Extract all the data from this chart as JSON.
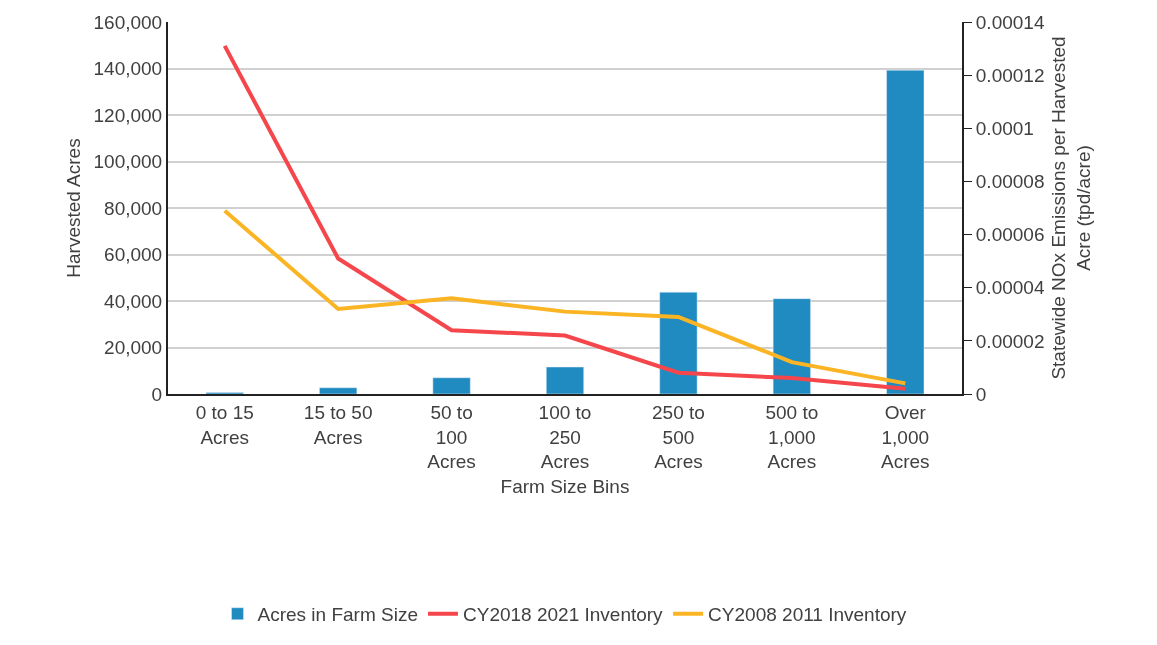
{
  "chart_data": {
    "type": "bar",
    "xlabel": "Farm Size Bins",
    "ylabel": "Harvested Acres",
    "y2label": "Statewide NOx Emissions per Harvested Acre (tpd/acre)",
    "categories": [
      "0 to 15 Acres",
      "15 to 50 Acres",
      "50 to 100 Acres",
      "100 to 250 Acres",
      "250 to 500 Acres",
      "500 to 1,000 Acres",
      "Over 1,000 Acres"
    ],
    "series": [
      {
        "name": "Acres in Farm Size",
        "color": "#1f8bc0",
        "values": [
          600,
          2700,
          7000,
          11600,
          43800,
          41000,
          139300
        ]
      },
      {
        "name": "CY2018 2021 Inventory",
        "color": "#f5474b",
        "type": "line",
        "axis": "y2",
        "values": [
          0.000131,
          5.1e-05,
          2.4e-05,
          2.2e-05,
          8e-06,
          6e-06,
          2e-06
        ]
      },
      {
        "name": "CY2008 2011 Inventory",
        "color": "#fbb424",
        "type": "line",
        "axis": "y2",
        "values": [
          6.9e-05,
          3.2e-05,
          3.6e-05,
          3.1e-05,
          2.9e-05,
          1.2e-05,
          4e-06
        ]
      }
    ],
    "ylim": [
      0,
      160000
    ],
    "yticks": [
      0,
      {
        "value": 20000,
        "label": "20,000"
      },
      {
        "value": 40000,
        "label": "40,000"
      },
      {
        "value": 60000,
        "label": "60,000"
      },
      {
        "value": 80000,
        "label": "80,000"
      },
      {
        "value": 100000,
        "label": "100,000"
      },
      {
        "value": 120000,
        "label": "120,000"
      },
      {
        "value": 140000,
        "label": "140,000"
      },
      {
        "value": 160000,
        "label": "160,000"
      }
    ],
    "y2lim": [
      0,
      0.00014
    ],
    "y2ticks": [
      0,
      {
        "value": 2e-05,
        "label": "0.00002"
      },
      {
        "value": 4e-05,
        "label": "0.00004"
      },
      {
        "value": 6e-05,
        "label": "0.00006"
      },
      {
        "value": 8e-05,
        "label": "0.00008"
      },
      {
        "value": 0.0001,
        "label": "0.0001"
      },
      {
        "value": 0.00012,
        "label": "0.00012"
      },
      {
        "value": 0.00014,
        "label": "0.00014"
      }
    ],
    "grid": "y",
    "legend": "bottom",
    "marker": "none",
    "line_style": "solid"
  }
}
